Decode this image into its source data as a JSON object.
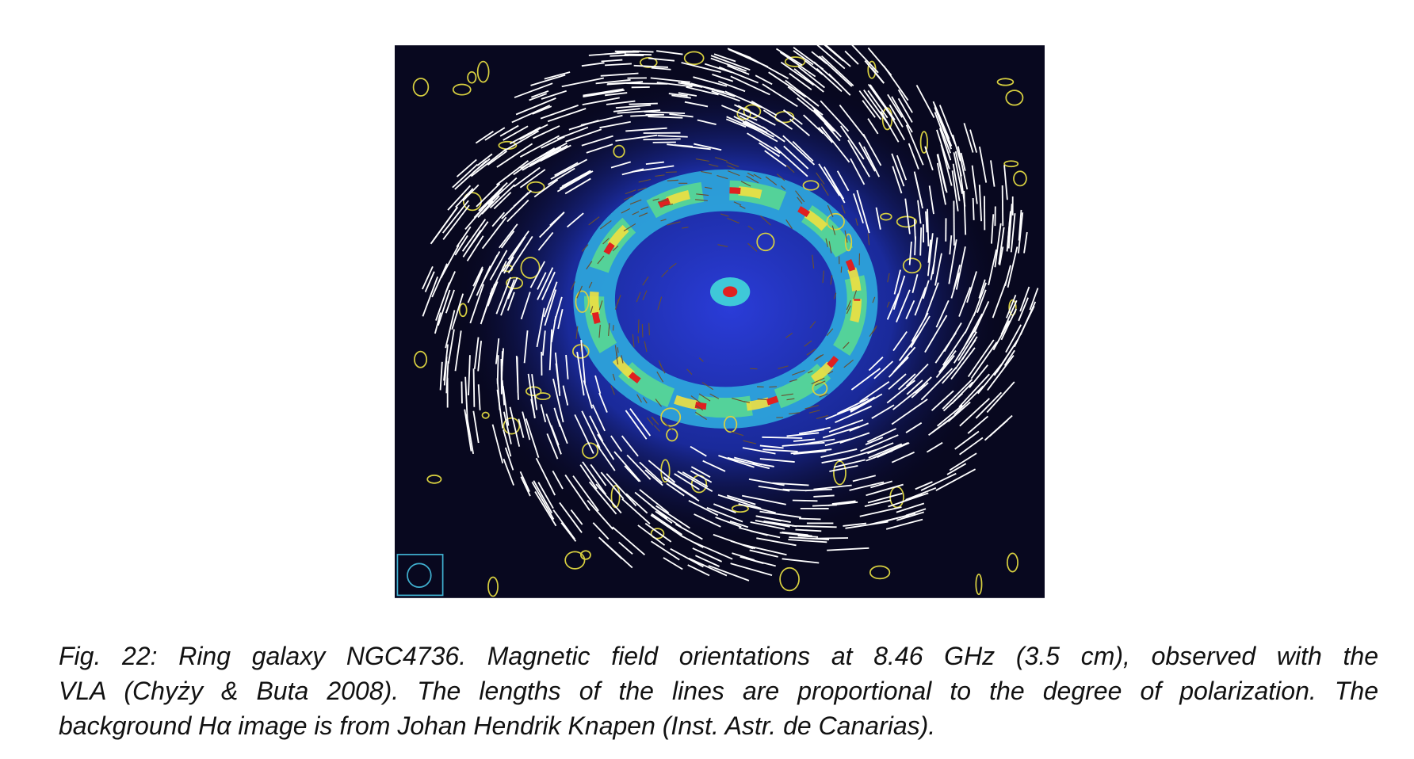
{
  "figure": {
    "caption_lines": [
      "Fig. 22: Ring galaxy NGC4736. Magnetic field orientations at 8.46 GHz (3.5 cm), observed with the",
      "VLA (Chyży & Buta 2008). The lengths of the lines are proportional to the degree of polarization. The",
      "background Hα image is from Johan Hendrik Knapen (Inst. Astr. de Canarias)."
    ]
  }
}
